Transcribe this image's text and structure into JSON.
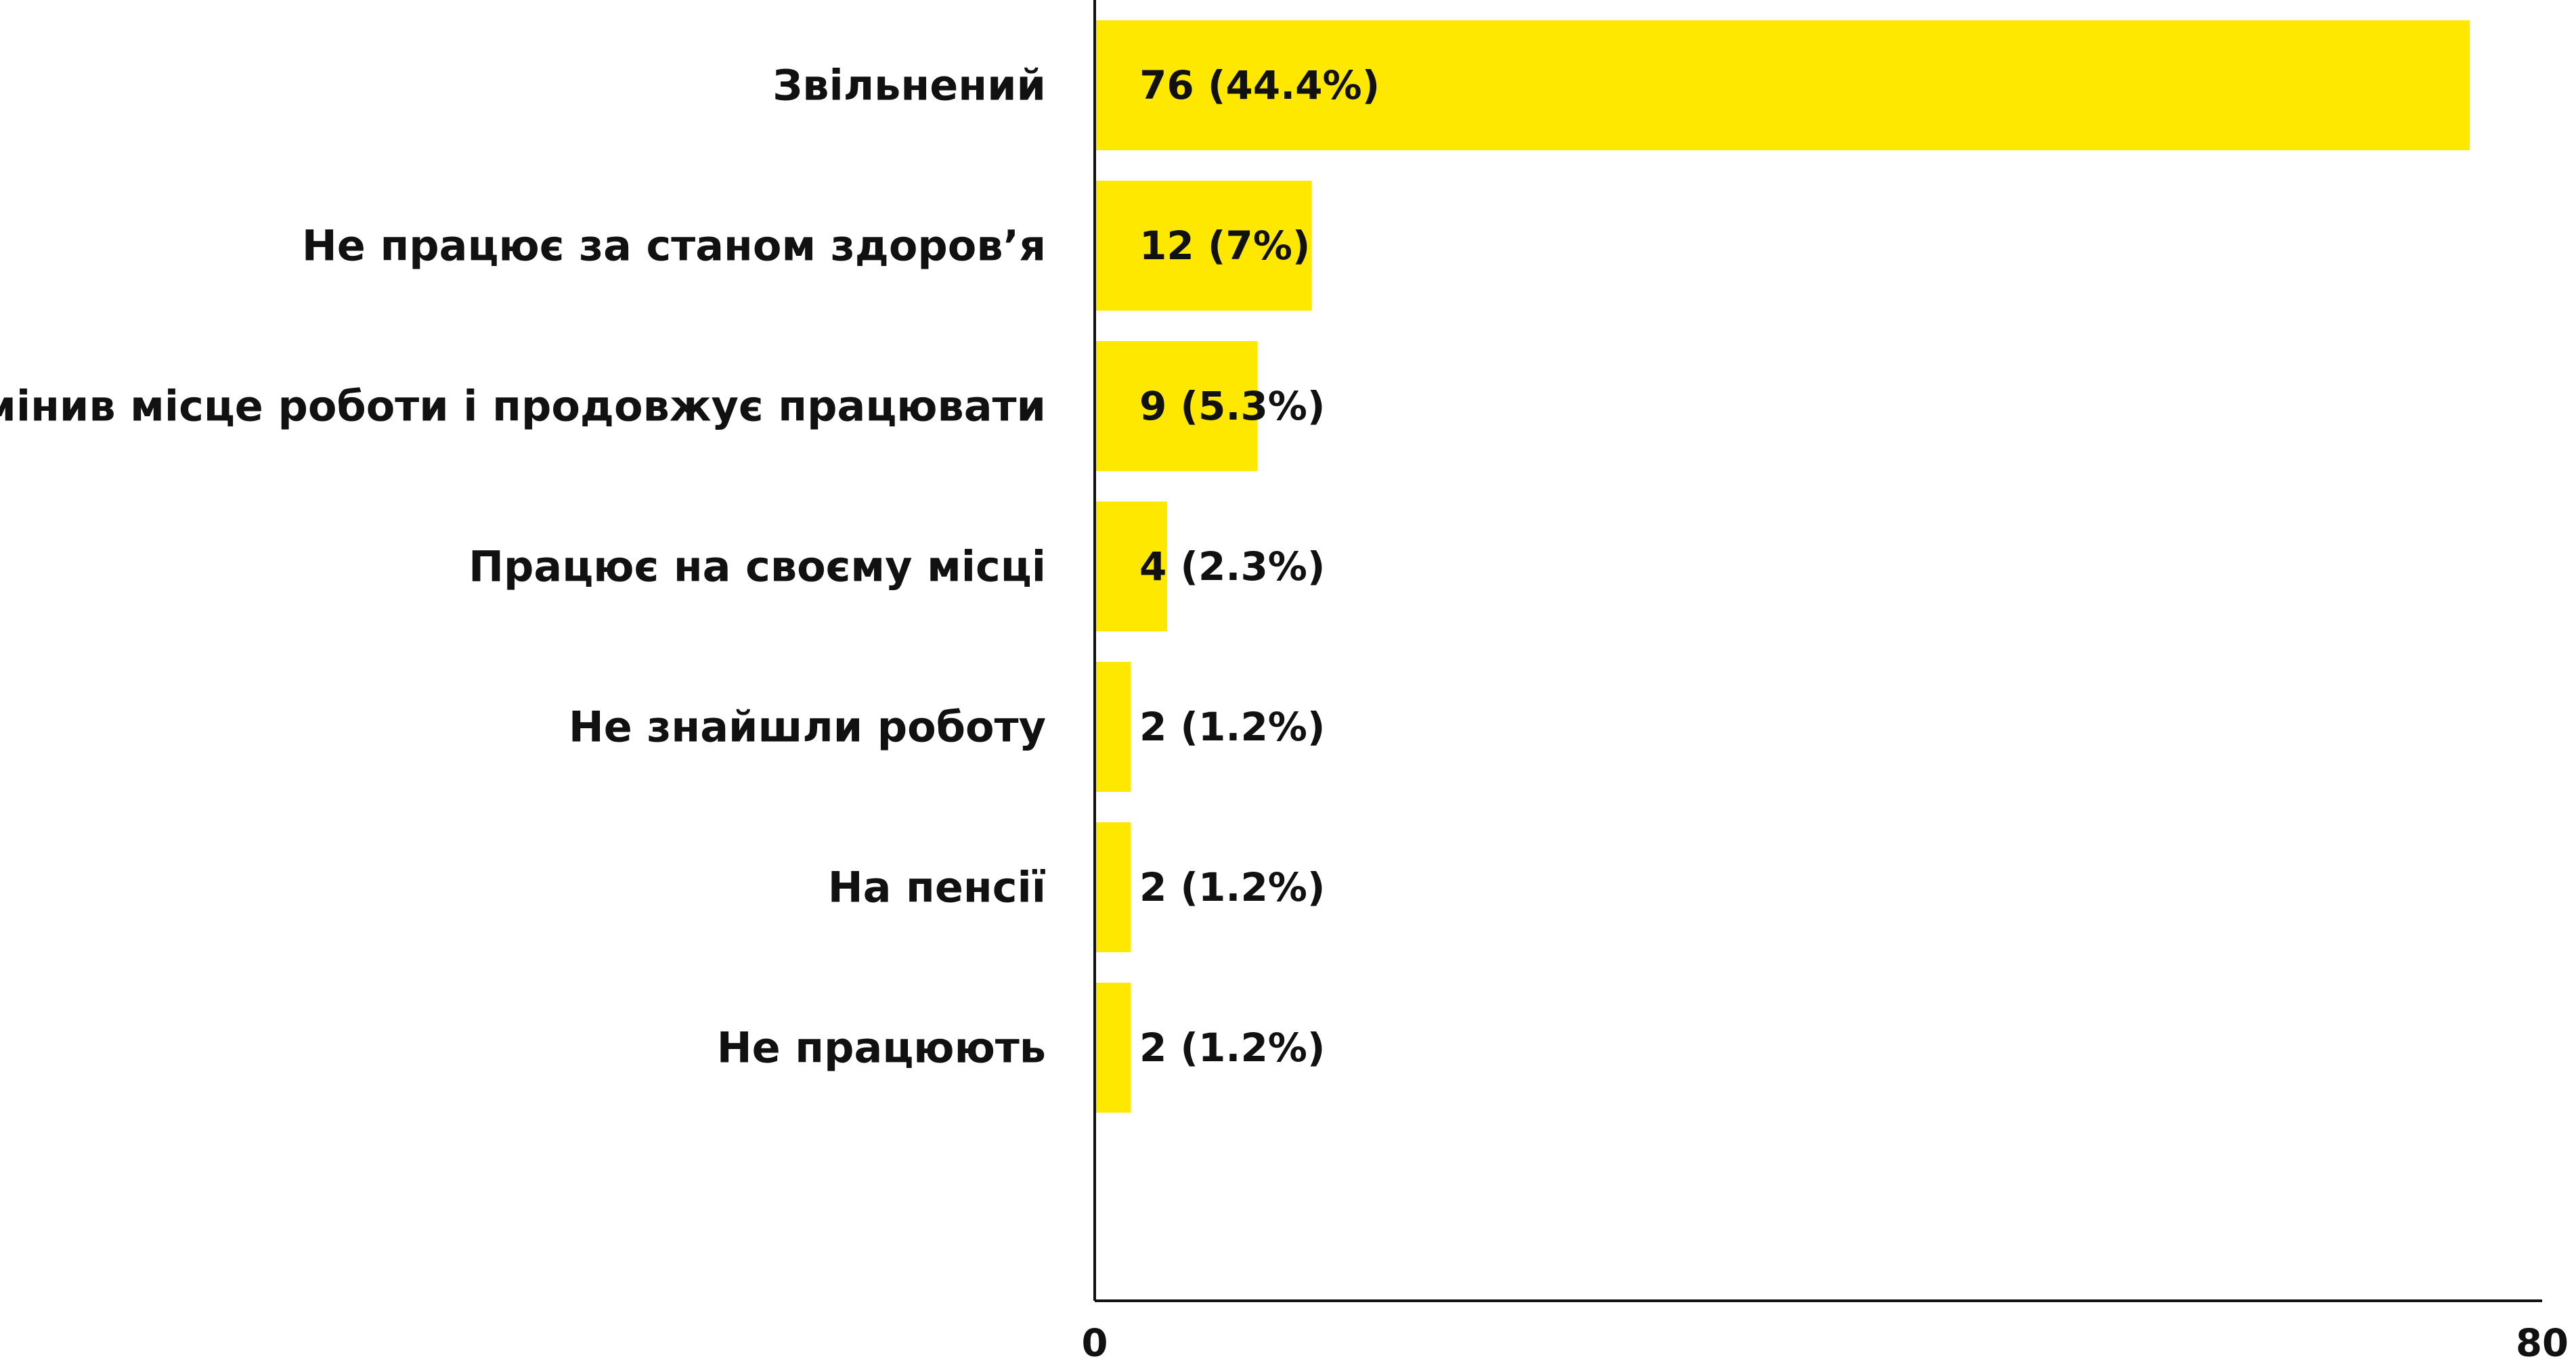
{
  "chart_data": {
    "type": "bar",
    "orientation": "horizontal",
    "categories": [
      "Звільнений",
      "Не працює за станом здоров’я",
      "Змінив місце роботи і продовжує працювати",
      "Працює на своєму місці",
      "Не знайшли роботу",
      "На пенсії",
      "Не працюють"
    ],
    "values": [
      76,
      12,
      9,
      4,
      2,
      2,
      2
    ],
    "data_labels": [
      "76 (44.4%)",
      "12 (7%)",
      "9 (5.3%)",
      "4 (2.3%)",
      "2 (1.2%)",
      "2 (1.2%)",
      "2 (1.2%)"
    ],
    "xlim": [
      0,
      80
    ],
    "x_tick_labels": [
      "0",
      "80"
    ],
    "title": "",
    "xlabel": "",
    "ylabel": "",
    "grid": false,
    "legend": "none",
    "bar_color": "#FFE800",
    "axis_color": "#111111"
  }
}
